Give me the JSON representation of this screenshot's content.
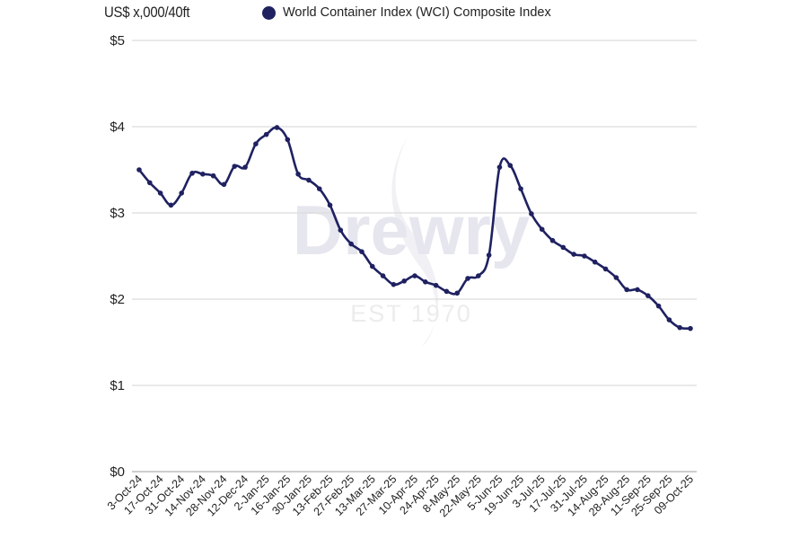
{
  "header": {
    "unit_label": "US$ x,000/40ft",
    "legend_label": "World Container Index (WCI) Composite Index",
    "legend_color": "#1f2161"
  },
  "watermark": {
    "brand": "Drewry",
    "tagline": "EST 1970"
  },
  "chart_data": {
    "type": "line",
    "title": "",
    "xlabel": "",
    "ylabel": "US$ x,000/40ft",
    "ylim": [
      0,
      5
    ],
    "yticks": [
      "$0",
      "$1",
      "$2",
      "$3",
      "$4",
      "$5"
    ],
    "ytick_values": [
      0,
      1,
      2,
      3,
      4,
      5
    ],
    "grid": true,
    "legend_position": "top",
    "x_tick_labels": [
      "3-Oct-24",
      "17-Oct-24",
      "31-Oct-24",
      "14-Nov-24",
      "28-Nov-24",
      "12-Dec-24",
      "2-Jan-25",
      "16-Jan-25",
      "30-Jan-25",
      "13-Feb-25",
      "27-Feb-25",
      "13-Mar-25",
      "27-Mar-25",
      "10-Apr-25",
      "24-Apr-25",
      "8-May-25",
      "22-May-25",
      "5-Jun-25",
      "19-Jun-25",
      "3-Jul-25",
      "17-Jul-25",
      "31-Jul-25",
      "14-Aug-25",
      "28-Aug-25",
      "11-Sep-25",
      "25-Sep-25",
      "09-Oct-25"
    ],
    "x_tick_point_index": [
      0,
      2,
      4,
      6,
      8,
      10,
      12,
      14,
      16,
      18,
      20,
      22,
      24,
      26,
      28,
      30,
      32,
      34,
      36,
      38,
      40,
      42,
      44,
      46,
      48,
      50,
      52
    ],
    "series": [
      {
        "name": "World Container Index (WCI) Composite Index",
        "color": "#1f2161",
        "values": [
          3.5,
          3.35,
          3.23,
          3.09,
          3.23,
          3.46,
          3.45,
          3.43,
          3.33,
          3.54,
          3.53,
          3.8,
          3.91,
          3.99,
          3.85,
          3.45,
          3.38,
          3.28,
          3.09,
          2.8,
          2.64,
          2.55,
          2.38,
          2.27,
          2.17,
          2.21,
          2.27,
          2.2,
          2.16,
          2.09,
          2.07,
          2.24,
          2.27,
          2.51,
          3.53,
          3.55,
          3.28,
          2.99,
          2.81,
          2.68,
          2.6,
          2.52,
          2.5,
          2.43,
          2.35,
          2.25,
          2.11,
          2.11,
          2.04,
          1.92,
          1.76,
          1.67,
          1.66
        ]
      }
    ]
  }
}
